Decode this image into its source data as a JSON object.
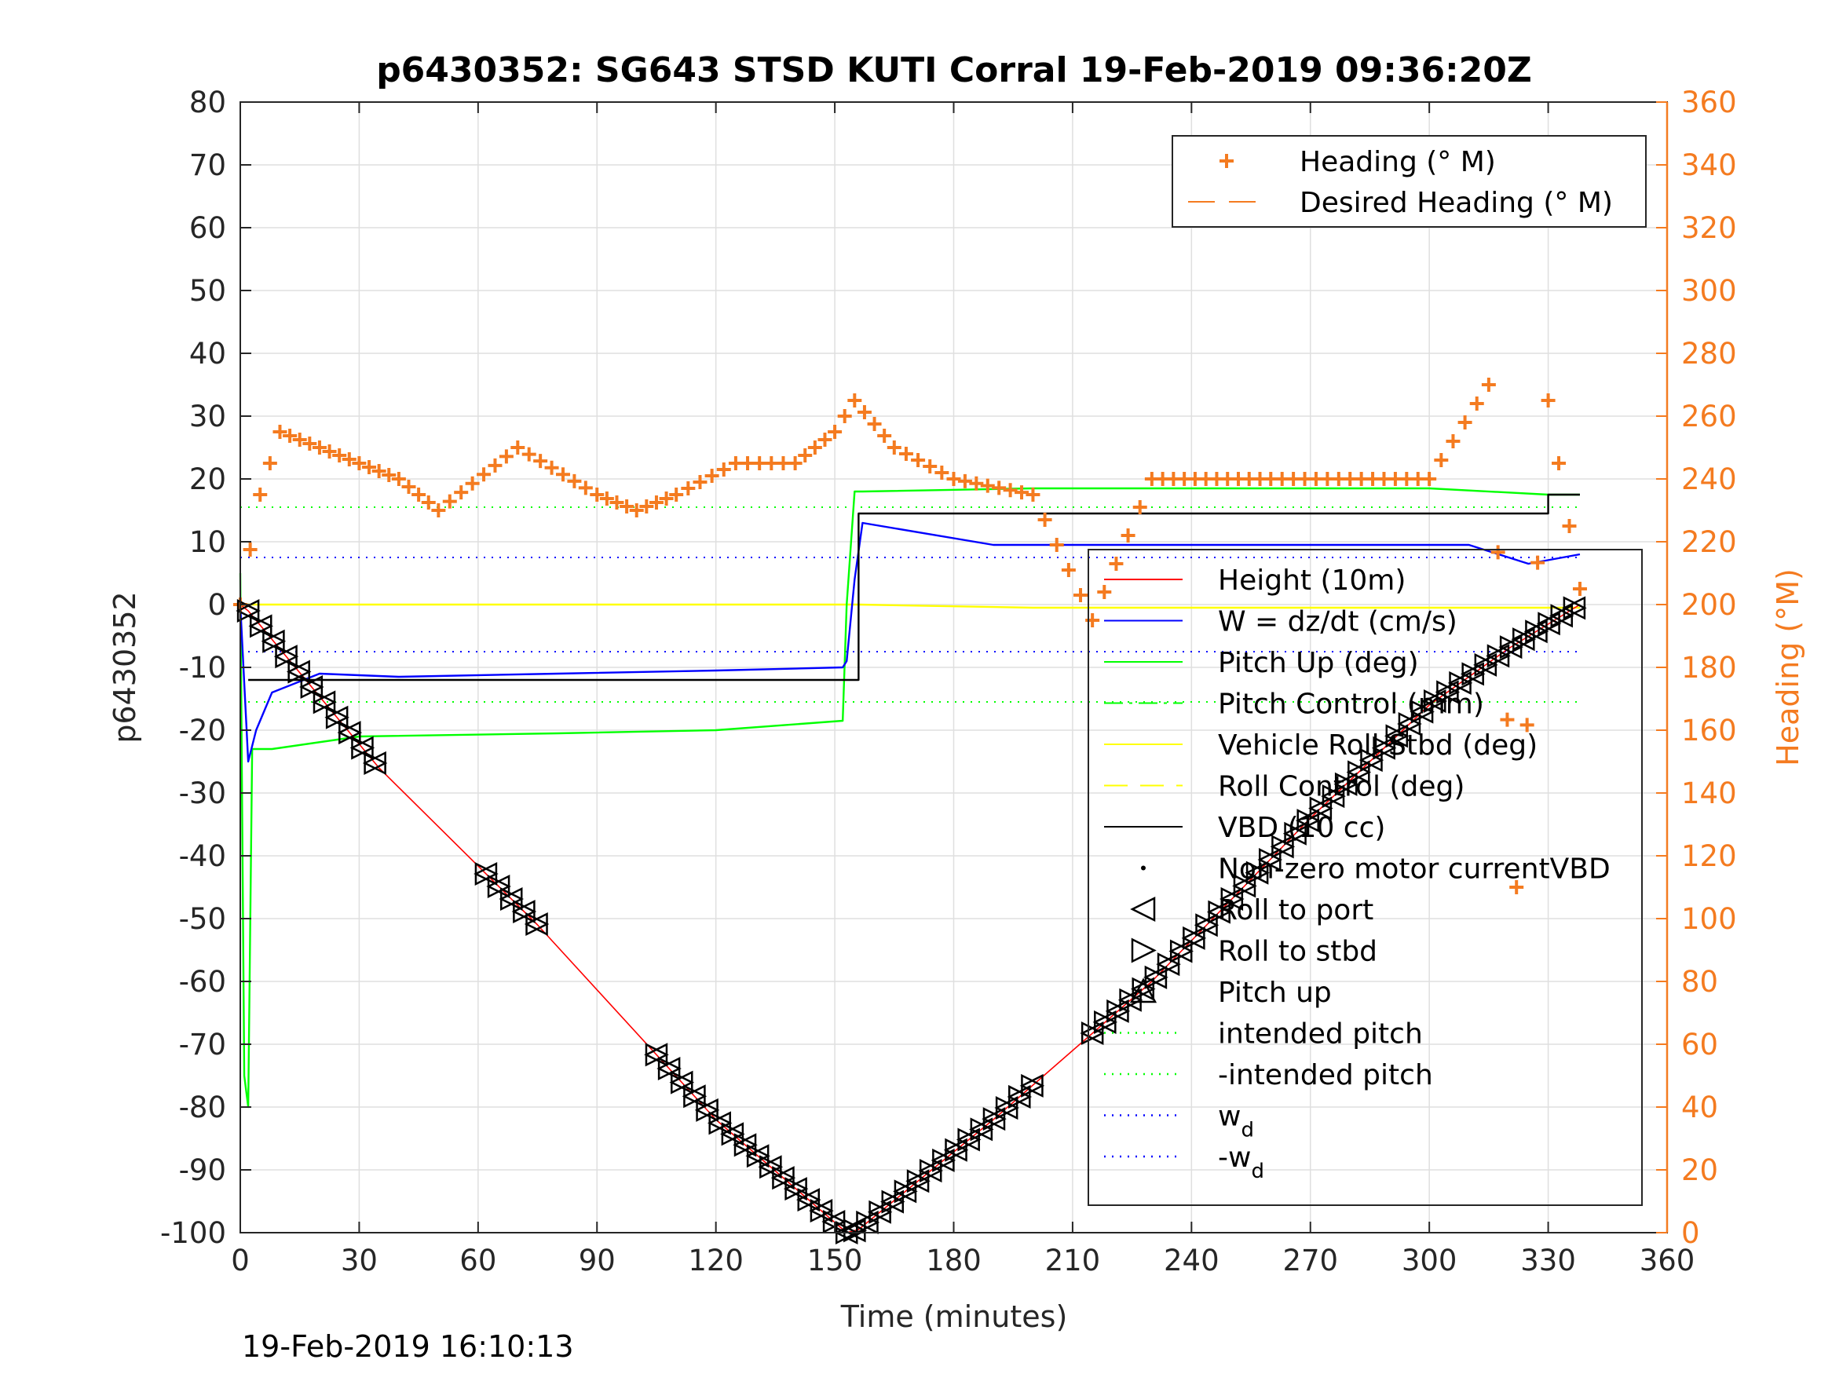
{
  "chart_data": {
    "type": "line",
    "title": "p6430352: SG643 STSD KUTI Corral 19-Feb-2019 09:36:20Z",
    "xlabel": "Time (minutes)",
    "ylabel_left": "p6430352",
    "ylabel_right": "Heading (°M)",
    "footer": "19-Feb-2019 16:10:13",
    "xlim": [
      0,
      360
    ],
    "ylim_left": [
      -100,
      80
    ],
    "ylim_right": [
      0,
      360
    ],
    "x_ticks": [
      "0",
      "30",
      "60",
      "90",
      "120",
      "150",
      "180",
      "210",
      "240",
      "270",
      "300",
      "330",
      "360"
    ],
    "y_ticks_left": [
      "80",
      "70",
      "60",
      "50",
      "40",
      "30",
      "20",
      "10",
      "0",
      "-10",
      "-20",
      "-30",
      "-40",
      "-50",
      "-60",
      "-70",
      "-80",
      "-90",
      "-100"
    ],
    "y_ticks_right": [
      "360",
      "340",
      "320",
      "300",
      "280",
      "260",
      "240",
      "220",
      "200",
      "180",
      "160",
      "140",
      "120",
      "100",
      "80",
      "60",
      "40",
      "20",
      "0"
    ],
    "grid": true,
    "colors": {
      "height": "#ff0000",
      "w": "#0000ff",
      "pitch": "#00ff00",
      "roll": "#ffff00",
      "vbd": "#000000",
      "heading": "#f47b20"
    },
    "legend_heading": [
      {
        "label": "Heading (° M)",
        "style": "plus",
        "color": "#f47b20"
      },
      {
        "label": "Desired Heading (° M)",
        "style": "dash",
        "color": "#f47b20"
      }
    ],
    "legend_main": [
      {
        "label": "Height (10m)",
        "style": "line",
        "color": "#ff0000"
      },
      {
        "label": "W = dz/dt (cm/s)",
        "style": "line",
        "color": "#0000ff"
      },
      {
        "label": "Pitch Up (deg)",
        "style": "line",
        "color": "#00ff00"
      },
      {
        "label": "Pitch Control (mm)",
        "style": "dashdot",
        "color": "#00ff00"
      },
      {
        "label": "Vehicle Roll Stbd (deg)",
        "style": "line",
        "color": "#ffff00"
      },
      {
        "label": "Roll Control (deg)",
        "style": "dash",
        "color": "#ffff00"
      },
      {
        "label": "VBD (10 cc)",
        "style": "line",
        "color": "#000000"
      },
      {
        "label": "Non-zero motor currentVBD",
        "style": "dot",
        "color": "#000000"
      },
      {
        "label": "Roll to port",
        "style": "tri-left",
        "color": "#000000"
      },
      {
        "label": "Roll to stbd",
        "style": "tri-right",
        "color": "#000000"
      },
      {
        "label": "Pitch up",
        "style": "tri-up",
        "color": "#000000"
      },
      {
        "label": "intended pitch",
        "style": "dotted",
        "color": "#00ff00"
      },
      {
        "label": "-intended pitch",
        "style": "dotted",
        "color": "#00ff00"
      },
      {
        "label": "w",
        "sub": "d",
        "style": "dotted",
        "color": "#0000ff"
      },
      {
        "label": "-w",
        "sub": "d",
        "style": "dotted",
        "color": "#0000ff"
      }
    ],
    "series": [
      {
        "name": "Height (10m)",
        "axis": "left",
        "x": [
          0,
          2,
          35,
          75,
          120,
          153,
          156,
          190,
          230,
          270,
          300,
          320,
          338
        ],
        "y": [
          0,
          -1,
          -26,
          -51,
          -82,
          -100,
          -99.5,
          -82,
          -60,
          -34,
          -16,
          -7,
          0
        ]
      },
      {
        "name": "W = dz/dt (cm/s)",
        "axis": "left",
        "x": [
          0,
          2,
          4,
          8,
          20,
          40,
          80,
          120,
          152,
          153,
          155,
          157,
          190,
          230,
          270,
          310,
          325,
          338
        ],
        "y": [
          0,
          -25,
          -20,
          -14,
          -11,
          -11.5,
          -11,
          -10.5,
          -10,
          -9,
          4,
          13,
          9.5,
          9.5,
          9.5,
          9.5,
          6.5,
          8
        ]
      },
      {
        "name": "Pitch Up (deg)",
        "axis": "left",
        "x": [
          0,
          1,
          2,
          3,
          8,
          30,
          80,
          120,
          152,
          153,
          155,
          157,
          200,
          260,
          300,
          330,
          338
        ],
        "y": [
          5,
          -75,
          -80,
          -23,
          -23,
          -21,
          -20.5,
          -20,
          -18.5,
          0,
          18,
          18,
          18.5,
          18.5,
          18.5,
          17.5,
          17.5
        ]
      },
      {
        "name": "Vehicle Roll Stbd (deg)",
        "axis": "left",
        "x": [
          0,
          2,
          40,
          100,
          150,
          156,
          200,
          250,
          300,
          338
        ],
        "y": [
          0,
          0,
          0,
          0,
          0,
          0,
          -0.5,
          -0.5,
          -0.5,
          -0.5
        ]
      },
      {
        "name": "VBD (10 cc)",
        "axis": "left",
        "x": [
          2,
          152,
          156,
          328,
          330,
          338
        ],
        "y": [
          -12,
          -12,
          14.5,
          14.5,
          17.5,
          17.5
        ]
      },
      {
        "name": "Heading (° M)",
        "axis": "right",
        "x": [
          0,
          5,
          10,
          20,
          30,
          40,
          50,
          70,
          90,
          100,
          110,
          125,
          140,
          150,
          155,
          165,
          180,
          200,
          215,
          230,
          260,
          300,
          315,
          322,
          330,
          338
        ],
        "y": [
          200,
          235,
          255,
          250,
          245,
          240,
          230,
          250,
          235,
          230,
          235,
          245,
          245,
          255,
          265,
          250,
          240,
          235,
          195,
          240,
          240,
          240,
          270,
          110,
          265,
          205
        ]
      }
    ],
    "reference_lines": [
      {
        "name": "intended pitch",
        "axis": "left",
        "y": 15.5
      },
      {
        "name": "-intended pitch",
        "axis": "left",
        "y": -15.5
      },
      {
        "name": "w_d",
        "axis": "left",
        "y": 7.5
      },
      {
        "name": "-w_d",
        "axis": "left",
        "y": -7.5
      }
    ]
  }
}
